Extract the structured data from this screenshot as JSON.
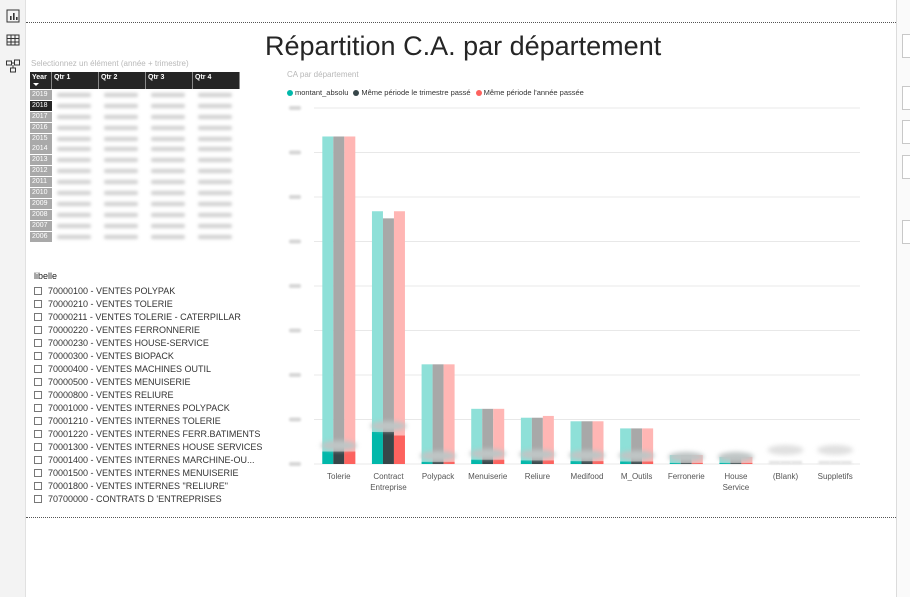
{
  "page": {
    "title": "Répartition C.A. par département"
  },
  "rail": {
    "icons": [
      "report-view-icon",
      "data-view-icon",
      "model-view-icon"
    ]
  },
  "year_slicer": {
    "title": "Selectionnez un élément  (année + trimestre)",
    "headers": [
      "Year",
      "Qtr 1",
      "Qtr 2",
      "Qtr 3",
      "Qtr 4"
    ],
    "years": [
      "2019",
      "2018",
      "2017",
      "2016",
      "2015",
      "2014",
      "2013",
      "2012",
      "2011",
      "2010",
      "2009",
      "2008",
      "2007",
      "2006"
    ],
    "selected_year": "2018"
  },
  "libelle_slicer": {
    "title": "libelle",
    "items": [
      "70000100 - VENTES POLYPAK",
      "70000210 - VENTES TOLERIE",
      "70000211 - VENTES TOLERIE - CATERPILLAR",
      "70000220 - VENTES FERRONNERIE",
      "70000230 - VENTES HOUSE-SERVICE",
      "70000300 - VENTES BIOPACK",
      "70000400 - VENTES MACHINES OUTIL",
      "70000500 - VENTES MENUISERIE",
      "70000800 - VENTES RELIURE",
      "70001000 - VENTES INTERNES POLYPACK",
      "70001210 - VENTES INTERNES TOLERIE",
      "70001220 - VENTES INTERNES FERR.BATIMENTS",
      "70001300 - VENTES INTERNES HOUSE SERVICES",
      "70001400 - VENTES INTERNES MARCHINE-OU...",
      "70001500 - VENTES INTERNES MENUISERIE",
      "70001800 - VENTES INTERNES \"RELIURE\"",
      "70700000 - CONTRATS D 'ENTREPRISES"
    ]
  },
  "chart_data": {
    "type": "bar",
    "title": "CA par département",
    "legend_position": "top-left",
    "grid": true,
    "ylim": [
      0,
      100
    ],
    "categories": [
      "Tolerie",
      "Contract Entreprise",
      "Polypack",
      "Menuiserie",
      "Reliure",
      "Medifood",
      "M_Outils",
      "Ferronerie",
      "House Service",
      "(Blank)",
      "Suppletifs"
    ],
    "series": [
      {
        "name": "montant_absolu",
        "color": "#01b8aa",
        "values": [
          92,
          71,
          28,
          15.5,
          13,
          12,
          10,
          2.5,
          2,
          0,
          0
        ]
      },
      {
        "name": "Même période le trimestre passé",
        "color": "#374649",
        "values": [
          92,
          69,
          28,
          15.5,
          13,
          12,
          10,
          2.5,
          2,
          0,
          0
        ]
      },
      {
        "name": "Même période l'année passée",
        "color": "#fd625e",
        "values": [
          92,
          71,
          28,
          15.5,
          13.5,
          12,
          10,
          2.5,
          2,
          0,
          0
        ]
      }
    ],
    "highlight_values": [
      [
        3.5,
        9,
        0.6,
        1.2,
        1.0,
        0.8,
        0.7,
        0.3,
        0.3,
        0,
        0
      ],
      [
        3.5,
        9,
        0.6,
        1.2,
        1.0,
        0.8,
        0.7,
        0.3,
        0.3,
        0,
        0
      ],
      [
        3.5,
        8,
        0.6,
        1.2,
        1.0,
        0.8,
        0.7,
        0.3,
        0.3,
        0,
        0
      ]
    ]
  }
}
